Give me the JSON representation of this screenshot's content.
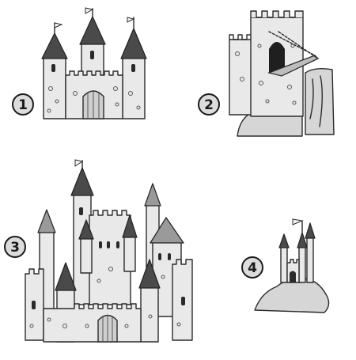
{
  "steps": [
    {
      "number": "1"
    },
    {
      "number": "2"
    },
    {
      "number": "3"
    },
    {
      "number": "4"
    }
  ],
  "colors": {
    "ink": "#2b2b2b",
    "wall_shade": "#e9e9e9",
    "roof_dark": "#4a4a4a",
    "badge_fill": "#dcdcdc"
  }
}
